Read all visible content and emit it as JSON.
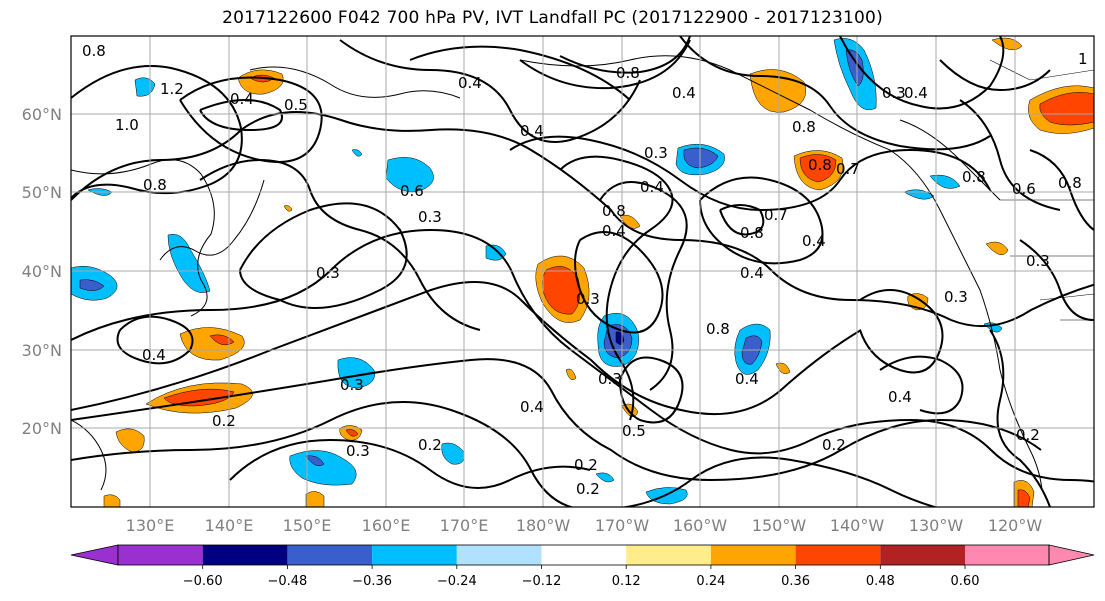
{
  "title": "2017122600 F042 700 hPa PV, IVT Landfall PC (2017122900 - 2017123100)",
  "lat_labels": [
    "60°N",
    "50°N",
    "40°N",
    "30°N",
    "20°N"
  ],
  "lon_labels": [
    "130°E",
    "140°E",
    "150°E",
    "160°E",
    "170°E",
    "180°W",
    "170°W",
    "160°W",
    "150°W",
    "140°W",
    "130°W",
    "120°W"
  ],
  "colorbar": {
    "ticks": [
      "−0.60",
      "−0.48",
      "−0.36",
      "−0.24",
      "−0.12",
      "0.12",
      "0.24",
      "0.36",
      "0.48",
      "0.60"
    ],
    "colors": [
      "#9b30d0",
      "#000080",
      "#3a5fcd",
      "#00bfff",
      "#b0e2ff",
      "#ffffff",
      "#ffec8b",
      "#ffa500",
      "#ff4500",
      "#b22222",
      "#ff88b0"
    ]
  },
  "contour_labels": [
    "0.8",
    "1.2",
    "0.4",
    "0.5",
    "1.0",
    "0.8",
    "0.4",
    "0.6",
    "0.3",
    "0.4",
    "0.4",
    "0.8",
    "0.4",
    "0.3",
    "0.8",
    "0.4",
    "0.7",
    "0.8",
    "0.8",
    "0.7",
    "0.4",
    "0.3",
    "0.4",
    "0.3",
    "0.8",
    "0.8",
    "0.8",
    "0.6",
    "0.3",
    "0.4",
    "0.3",
    "0.3",
    "0.3",
    "0.4",
    "0.8",
    "0.4",
    "0.3",
    "0.2",
    "0.3",
    "0.2",
    "0.4",
    "0.5",
    "0.2",
    "0.2",
    "0.2",
    "0.4",
    "0.2",
    "1"
  ]
}
